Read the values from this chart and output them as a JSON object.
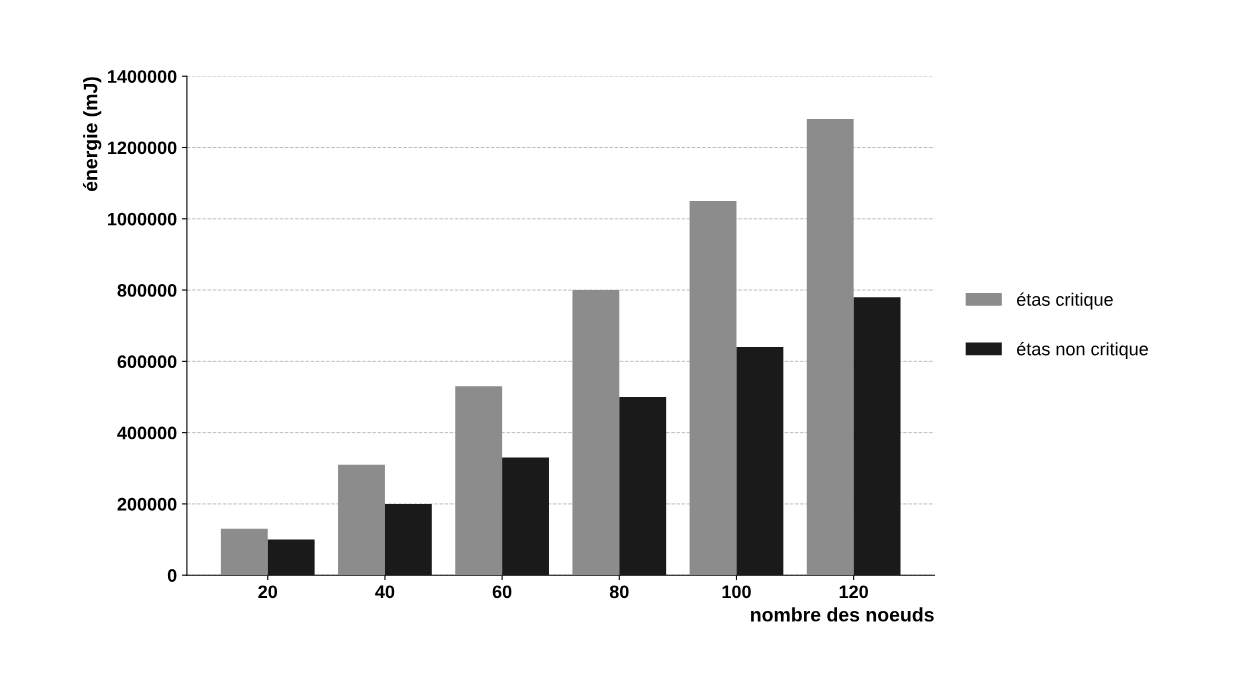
{
  "chart_data": {
    "type": "bar",
    "xlabel": "nombre des noeuds",
    "ylabel": "énergie (mJ)",
    "categories": [
      "20",
      "40",
      "60",
      "80",
      "100",
      "120"
    ],
    "series": [
      {
        "name": "étas critique",
        "color": "#8c8c8c",
        "values": [
          130000,
          310000,
          530000,
          800000,
          1050000,
          1280000
        ]
      },
      {
        "name": "étas non critique",
        "color": "#1a1a1a",
        "values": [
          100000,
          200000,
          330000,
          500000,
          640000,
          780000
        ]
      }
    ],
    "ylim": [
      0,
      1400000
    ],
    "yticks": [
      0,
      200000,
      400000,
      600000,
      800000,
      1000000,
      1200000,
      1400000
    ],
    "grid": "y",
    "legend": "right"
  }
}
